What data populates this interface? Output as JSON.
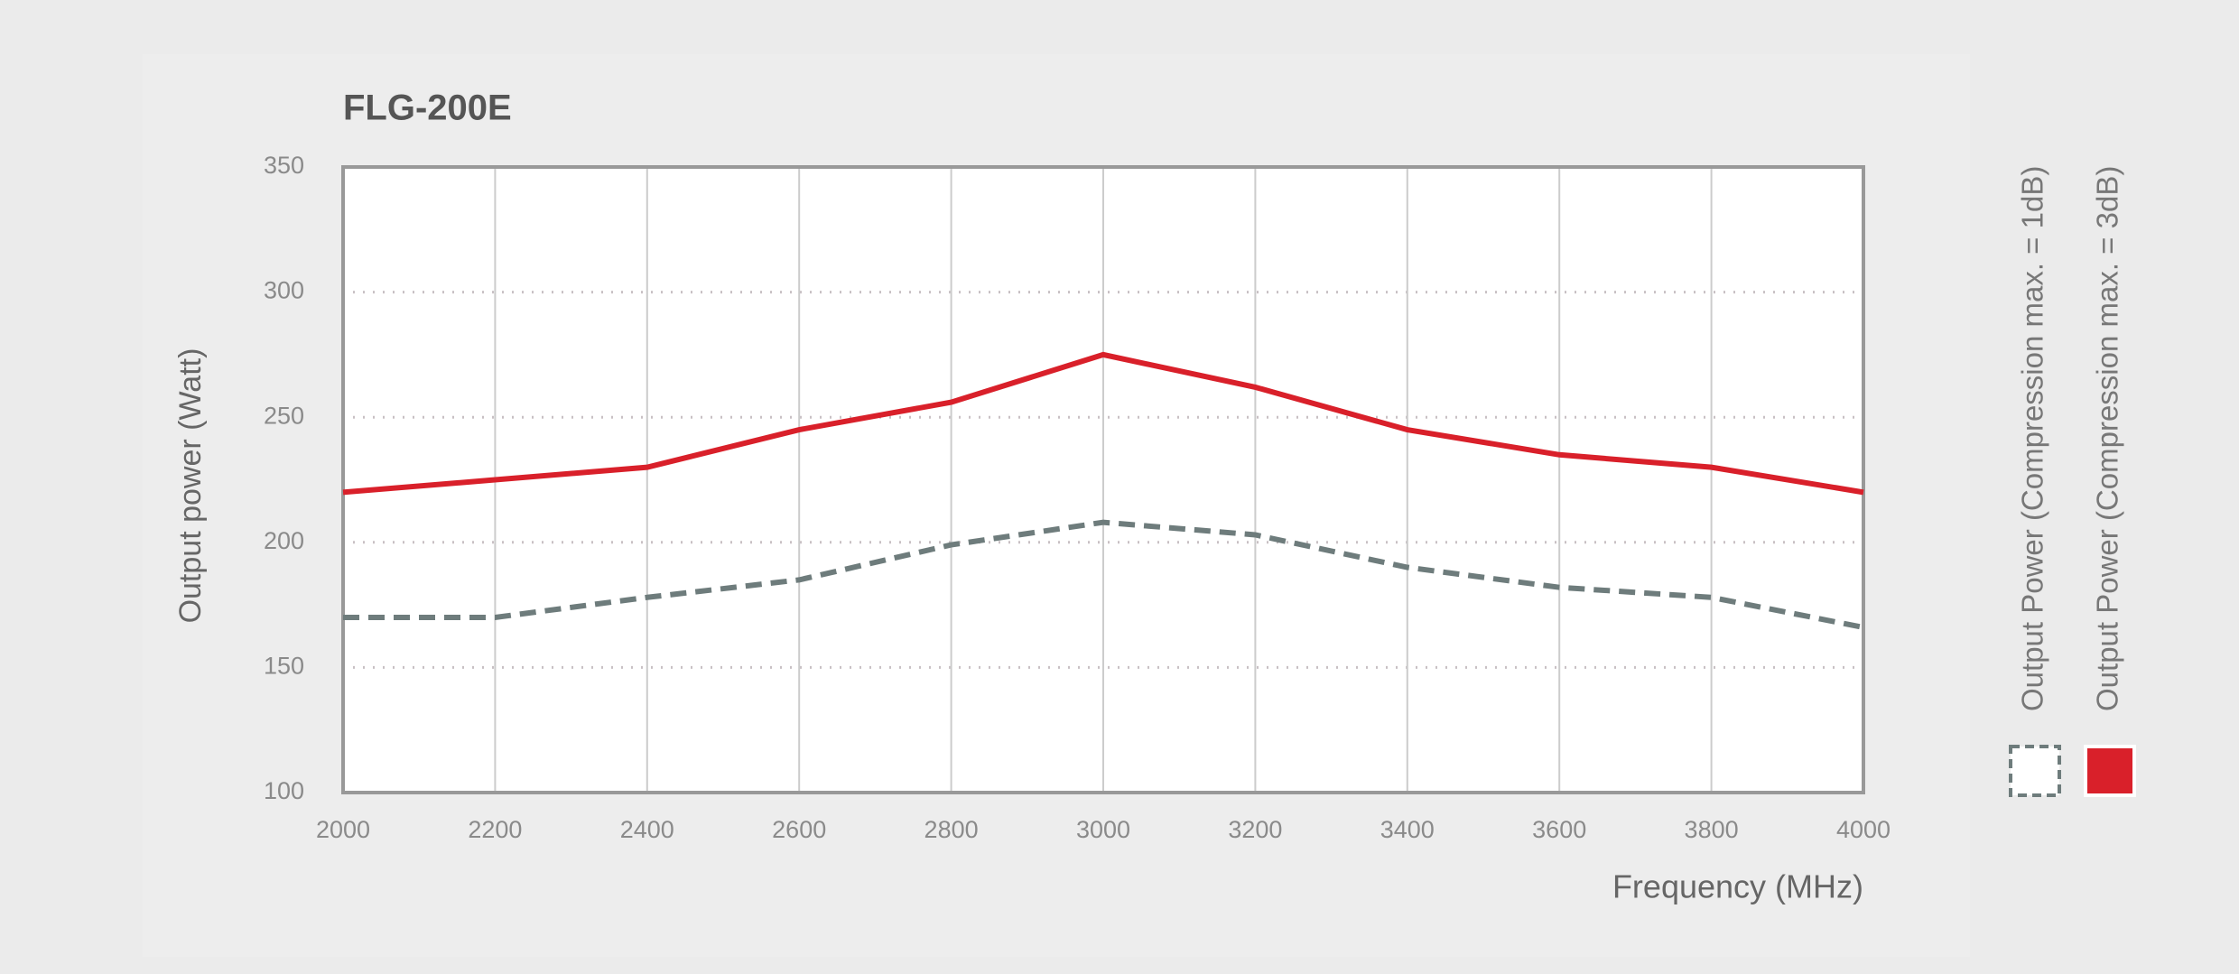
{
  "chart_data": {
    "type": "line",
    "title": "FLG-200E",
    "x_label": "Frequency (MHz)",
    "y_label": "Output power (Watt)",
    "x": [
      2000,
      2200,
      2400,
      2600,
      2800,
      3000,
      3200,
      3400,
      3600,
      3800,
      4000
    ],
    "series": [
      {
        "name": "Output Power (Compression max. = 1dB)",
        "color": "#6e7c7c",
        "line_style": "dashed",
        "values": [
          170,
          170,
          178,
          185,
          199,
          208,
          203,
          190,
          182,
          178,
          166
        ]
      },
      {
        "name": "Output Power (Compression max. = 3dB)",
        "color": "#d9202a",
        "line_style": "solid",
        "values": [
          220,
          225,
          230,
          245,
          256,
          275,
          262,
          245,
          235,
          230,
          220
        ]
      }
    ],
    "xlim": [
      2000,
      4000
    ],
    "xticks": [
      2000,
      2200,
      2400,
      2600,
      2800,
      3000,
      3200,
      3400,
      3600,
      3800,
      4000
    ],
    "ylim": [
      100,
      350
    ],
    "yticks": [
      100,
      150,
      200,
      250,
      300,
      350
    ],
    "grid": true,
    "legend_position": "right"
  }
}
